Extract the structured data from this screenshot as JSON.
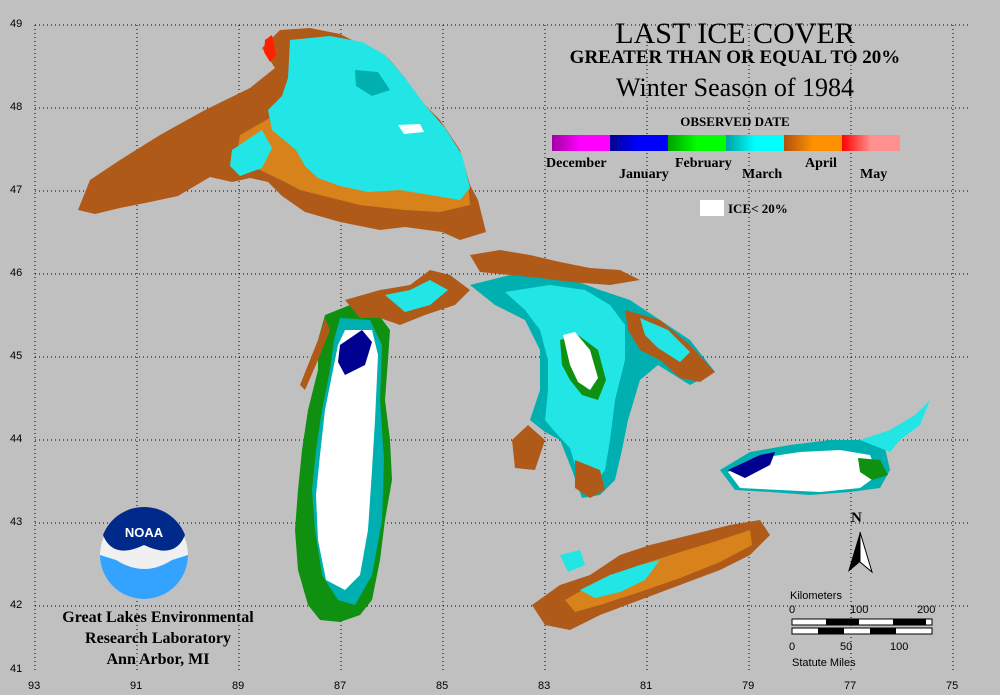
{
  "title": "LAST ICE COVER",
  "subtitle": "GREATER THAN OR EQUAL TO 20%",
  "season": "Winter Season of 1984",
  "legend": {
    "title": "OBSERVED DATE",
    "months": [
      "December",
      "January",
      "February",
      "March",
      "April",
      "May"
    ],
    "colors": [
      "#a000a0",
      "#ff00ff",
      "#000090",
      "#0000ff",
      "#00a000",
      "#00ff00",
      "#00a0a0",
      "#00ffff",
      "#b05010",
      "#ff9000",
      "#ff0000",
      "#ff9090"
    ],
    "ice_label": "ICE< 20%"
  },
  "axes": {
    "latitudes": [
      "49",
      "48",
      "47",
      "46",
      "45",
      "44",
      "43",
      "42",
      "41"
    ],
    "longitudes": [
      "93",
      "91",
      "89",
      "87",
      "85",
      "83",
      "81",
      "79",
      "77",
      "75"
    ]
  },
  "scale": {
    "km_title": "Kilometers",
    "km_ticks": [
      "0",
      "100",
      "200"
    ],
    "mi_ticks": [
      "0",
      "50",
      "100"
    ],
    "mi_title": "Statute Miles"
  },
  "north_label": "N",
  "organization": [
    "Great Lakes Environmental",
    "Research Laboratory",
    "Ann Arbor, MI"
  ],
  "logo_text": "NOAA",
  "colors": {
    "background": "#c0c0c0",
    "april_brown": "#b05a1a",
    "april_orange": "#d8821c",
    "march_cyan": "#22e6e6",
    "march_teal": "#00b0b0",
    "feb_green": "#109010",
    "jan_navy": "#000090",
    "ice_white": "#ffffff"
  }
}
